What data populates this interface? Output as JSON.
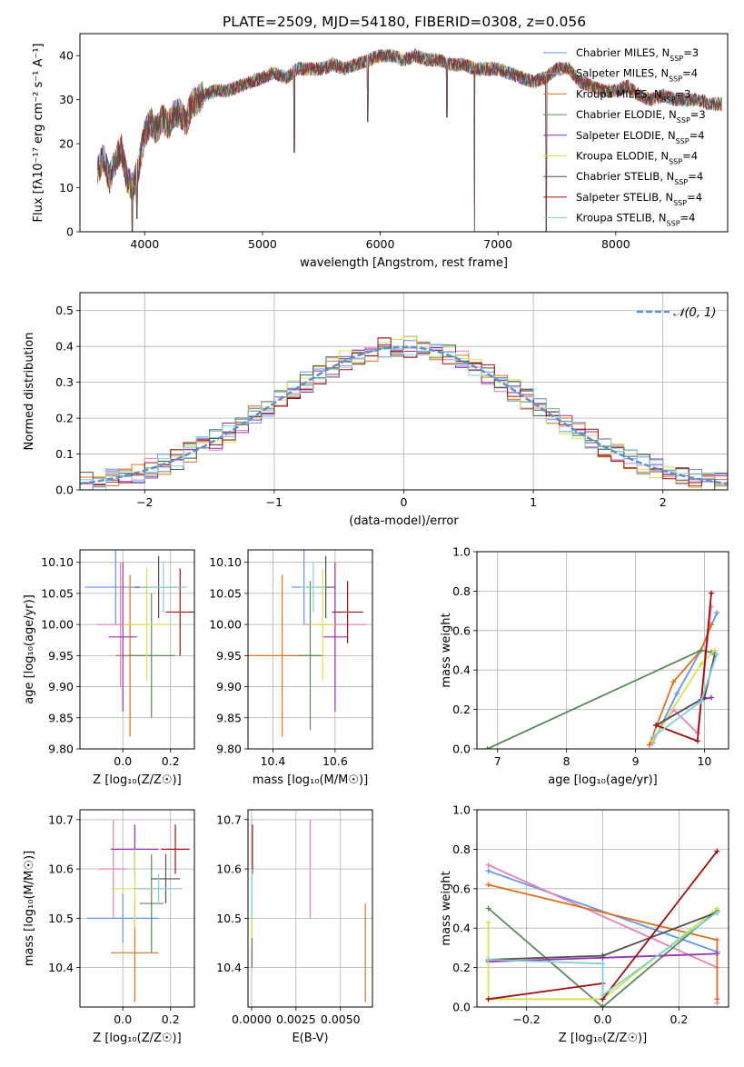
{
  "figure": {
    "title": "PLATE=2509, MJD=54180, FIBERID=0308, z=0.056"
  },
  "series": [
    {
      "name": "Chabrier MILES, N",
      "sub": "SSP",
      "eq": "=3",
      "color": "#6495ed"
    },
    {
      "name": "Salpeter MILES, N",
      "sub": "SSP",
      "eq": "=4",
      "color": "#e87fb8"
    },
    {
      "name": "Kroupa MILES, N",
      "sub": "SSP",
      "eq": "=3",
      "color": "#e07020"
    },
    {
      "name": "Chabrier ELODIE, N",
      "sub": "SSP",
      "eq": "=3",
      "color": "#5a8a5a"
    },
    {
      "name": "Salpeter ELODIE, N",
      "sub": "SSP",
      "eq": "=4",
      "color": "#9a30b0"
    },
    {
      "name": "Kroupa ELODIE, N",
      "sub": "SSP",
      "eq": "=4",
      "color": "#d8e050"
    },
    {
      "name": "Chabrier STELIB, N",
      "sub": "SSP",
      "eq": "=4",
      "color": "#505050"
    },
    {
      "name": "Salpeter STELIB, N",
      "sub": "SSP",
      "eq": "=4",
      "color": "#a01010"
    },
    {
      "name": "Kroupa STELIB, N",
      "sub": "SSP",
      "eq": "=4",
      "color": "#80d0d8"
    }
  ],
  "chart_data": [
    {
      "id": "spectrum",
      "type": "line",
      "xlabel": "wavelength [Angstrom, rest frame]",
      "ylabel": "Flux [fλ10⁻¹⁷ erg cm⁻² s⁻¹ A⁻¹]",
      "xlim": [
        3450,
        8950
      ],
      "ylim": [
        0,
        45
      ],
      "xticks": [
        "4000",
        "5000",
        "6000",
        "7000",
        "8000"
      ],
      "xtick_values": [
        4000,
        5000,
        6000,
        7000,
        8000
      ],
      "yticks": [
        "0",
        "10",
        "20",
        "30",
        "40"
      ],
      "ytick_values": [
        0,
        10,
        20,
        30,
        40
      ],
      "grid": false,
      "legend": "top-right",
      "x": [
        3600,
        3650,
        3700,
        3750,
        3800,
        3850,
        3900,
        3950,
        4000,
        4050,
        4100,
        4150,
        4200,
        4250,
        4300,
        4350,
        4400,
        4450,
        4500,
        4600,
        4700,
        4800,
        4900,
        5000,
        5100,
        5200,
        5300,
        5400,
        5500,
        5600,
        5700,
        5800,
        5900,
        6000,
        6100,
        6200,
        6300,
        6400,
        6500,
        6600,
        6700,
        6800,
        6900,
        7000,
        7100,
        7200,
        7300,
        7400,
        7500,
        7600,
        7700,
        7800,
        7900,
        8000,
        8100,
        8200,
        8300,
        8400,
        8500,
        8600,
        8700,
        8800,
        8900
      ],
      "values": [
        14,
        17,
        12,
        16,
        19,
        12,
        10,
        15,
        22,
        25,
        23,
        26,
        24,
        27,
        27,
        25,
        29,
        30,
        31,
        32,
        32,
        33,
        34,
        35,
        36,
        35,
        37,
        37,
        37,
        38,
        37,
        38,
        39,
        40,
        40,
        39,
        40,
        39,
        39,
        38,
        38,
        37,
        37,
        37,
        36,
        35,
        34,
        35,
        37,
        37,
        34,
        33,
        32,
        32,
        33,
        31,
        30,
        31,
        30,
        30,
        30,
        29,
        29
      ],
      "dips": [
        {
          "x": 3895,
          "y": 0
        },
        {
          "x": 3935,
          "y": 3
        },
        {
          "x": 5270,
          "y": 18
        },
        {
          "x": 5895,
          "y": 25
        },
        {
          "x": 6565,
          "y": 26
        },
        {
          "x": 6800,
          "y": 0
        },
        {
          "x": 7410,
          "y": 0
        }
      ]
    },
    {
      "id": "residuals",
      "type": "line",
      "xlabel": "(data-model)/error",
      "ylabel": "Normed distribution",
      "xlim": [
        -2.5,
        2.5
      ],
      "ylim": [
        0,
        0.55
      ],
      "xticks": [
        "−2",
        "−1",
        "0",
        "1",
        "2"
      ],
      "xtick_values": [
        -2,
        -1,
        0,
        1,
        2
      ],
      "yticks": [
        "0.0",
        "0.1",
        "0.2",
        "0.3",
        "0.4",
        "0.5"
      ],
      "ytick_values": [
        0,
        0.1,
        0.2,
        0.3,
        0.4,
        0.5
      ],
      "grid": true,
      "legend": "top-right",
      "reference": {
        "name": "𝒩(0, 1)",
        "mean": 0,
        "sigma": 1
      }
    },
    {
      "id": "age-vs-Z",
      "type": "scatter",
      "xlabel": "Z [log₁₀(Z/Z☉)]",
      "ylabel": "age  [log₁₀(age/yr)]",
      "xlim": [
        -0.18,
        0.3
      ],
      "ylim": [
        9.8,
        10.12
      ],
      "xticks": [
        "0.0",
        "0.2"
      ],
      "xtick_values": [
        0,
        0.2
      ],
      "yticks": [
        "9.80",
        "9.85",
        "9.90",
        "9.95",
        "10.00",
        "10.05",
        "10.10"
      ],
      "ytick_values": [
        9.8,
        9.85,
        9.9,
        9.95,
        10.0,
        10.05,
        10.1
      ],
      "grid": true,
      "points": [
        {
          "x": -0.03,
          "y": 10.06,
          "xerr": 0.13,
          "yerr": 0.06,
          "c": 0
        },
        {
          "x": -0.01,
          "y": 10.0,
          "xerr": 0.1,
          "yerr": 0.1,
          "c": 1
        },
        {
          "x": 0.03,
          "y": 9.95,
          "xerr": 0.06,
          "yerr": 0.13,
          "c": 2
        },
        {
          "x": 0.12,
          "y": 9.95,
          "xerr": 0.1,
          "yerr": 0.1,
          "c": 3
        },
        {
          "x": 0.0,
          "y": 9.98,
          "xerr": 0.06,
          "yerr": 0.12,
          "c": 4
        },
        {
          "x": 0.1,
          "y": 10.0,
          "xerr": 0.1,
          "yerr": 0.09,
          "c": 5
        },
        {
          "x": 0.15,
          "y": 10.06,
          "xerr": 0.1,
          "yerr": 0.05,
          "c": 6
        },
        {
          "x": 0.24,
          "y": 10.02,
          "xerr": 0.06,
          "yerr": 0.07,
          "c": 7
        },
        {
          "x": 0.17,
          "y": 10.06,
          "xerr": 0.1,
          "yerr": 0.04,
          "c": 8
        }
      ]
    },
    {
      "id": "age-vs-mass",
      "type": "scatter",
      "xlabel": "mass [log₁₀(M/M☉)]",
      "ylabel": "",
      "xlim": [
        10.32,
        10.72
      ],
      "ylim": [
        9.8,
        10.12
      ],
      "xticks": [
        "10.4",
        "10.6"
      ],
      "xtick_values": [
        10.4,
        10.6
      ],
      "yticks": [
        "9.80",
        "9.85",
        "9.90",
        "9.95",
        "10.00",
        "10.05",
        "10.10"
      ],
      "ytick_values": [
        9.8,
        9.85,
        9.9,
        9.95,
        10.0,
        10.05,
        10.1
      ],
      "grid": true,
      "points": [
        {
          "x": 10.5,
          "y": 10.06,
          "xerr": 0.04,
          "yerr": 0.06,
          "c": 0
        },
        {
          "x": 10.6,
          "y": 10.0,
          "xerr": 0.1,
          "yerr": 0.1,
          "c": 1
        },
        {
          "x": 10.43,
          "y": 9.95,
          "xerr": 0.12,
          "yerr": 0.13,
          "c": 2
        },
        {
          "x": 10.52,
          "y": 9.95,
          "xerr": 0.04,
          "yerr": 0.12,
          "c": 3
        },
        {
          "x": 10.6,
          "y": 9.98,
          "xerr": 0.04,
          "yerr": 0.12,
          "c": 4
        },
        {
          "x": 10.56,
          "y": 10.0,
          "xerr": 0.04,
          "yerr": 0.09,
          "c": 5
        },
        {
          "x": 10.57,
          "y": 10.06,
          "xerr": 0.03,
          "yerr": 0.05,
          "c": 6
        },
        {
          "x": 10.64,
          "y": 10.02,
          "xerr": 0.05,
          "yerr": 0.05,
          "c": 7
        },
        {
          "x": 10.53,
          "y": 10.06,
          "xerr": 0.04,
          "yerr": 0.04,
          "c": 8
        }
      ]
    },
    {
      "id": "mass-weight-vs-age",
      "type": "line",
      "xlabel": "age  [log₁₀(age/yr)]",
      "ylabel": "mass weight",
      "xlim": [
        6.7,
        10.35
      ],
      "ylim": [
        0,
        1
      ],
      "xticks": [
        "7",
        "8",
        "9",
        "10"
      ],
      "xtick_values": [
        7,
        8,
        9,
        10
      ],
      "yticks": [
        "0.0",
        "0.2",
        "0.4",
        "0.6",
        "0.8",
        "1.0"
      ],
      "ytick_values": [
        0,
        0.2,
        0.4,
        0.6,
        0.8,
        1.0
      ],
      "grid": true,
      "lines": [
        {
          "c": 0,
          "x": [
            9.25,
            9.6,
            9.95,
            10.18
          ],
          "y": [
            0.03,
            0.28,
            0.5,
            0.69
          ]
        },
        {
          "c": 1,
          "x": [
            9.2,
            9.55,
            9.9,
            10.1
          ],
          "y": [
            0.02,
            0.2,
            0.08,
            0.72
          ]
        },
        {
          "c": 2,
          "x": [
            9.2,
            9.55,
            9.95,
            10.1
          ],
          "y": [
            0.02,
            0.34,
            0.5,
            0.63
          ]
        },
        {
          "c": 3,
          "x": [
            6.85,
            9.95,
            10.1
          ],
          "y": [
            0.0,
            0.5,
            0.49
          ]
        },
        {
          "c": 4,
          "x": [
            9.3,
            9.95,
            10.1
          ],
          "y": [
            0.12,
            0.25,
            0.26
          ]
        },
        {
          "c": 5,
          "x": [
            9.25,
            9.95,
            10.15
          ],
          "y": [
            0.04,
            0.43,
            0.5
          ]
        },
        {
          "c": 6,
          "x": [
            9.3,
            10.0,
            10.15
          ],
          "y": [
            0.12,
            0.26,
            0.48
          ]
        },
        {
          "c": 7,
          "x": [
            9.3,
            9.9,
            10.1
          ],
          "y": [
            0.12,
            0.04,
            0.79
          ]
        },
        {
          "c": 8,
          "x": [
            9.25,
            9.95,
            10.18
          ],
          "y": [
            0.06,
            0.24,
            0.48
          ]
        }
      ]
    },
    {
      "id": "mass-vs-Z",
      "type": "scatter",
      "xlabel": "Z [log₁₀(Z/Z☉)]",
      "ylabel": "mass [log₁₀(M/M☉)]",
      "xlim": [
        -0.18,
        0.3
      ],
      "ylim": [
        10.32,
        10.72
      ],
      "xticks": [
        "0.0",
        "0.2"
      ],
      "xtick_values": [
        0,
        0.2
      ],
      "yticks": [
        "10.4",
        "10.5",
        "10.6",
        "10.7"
      ],
      "ytick_values": [
        10.4,
        10.5,
        10.6,
        10.7
      ],
      "grid": true,
      "points": [
        {
          "x": 0.0,
          "y": 10.5,
          "xerr": 0.15,
          "yerr": 0.05,
          "c": 0
        },
        {
          "x": -0.04,
          "y": 10.6,
          "xerr": 0.06,
          "yerr": 0.1,
          "c": 1
        },
        {
          "x": 0.05,
          "y": 10.43,
          "xerr": 0.1,
          "yerr": 0.1,
          "c": 2
        },
        {
          "x": 0.12,
          "y": 10.53,
          "xerr": 0.05,
          "yerr": 0.1,
          "c": 3
        },
        {
          "x": 0.05,
          "y": 10.64,
          "xerr": 0.1,
          "yerr": 0.05,
          "c": 4
        },
        {
          "x": 0.05,
          "y": 10.56,
          "xerr": 0.1,
          "yerr": 0.08,
          "c": 5
        },
        {
          "x": 0.18,
          "y": 10.58,
          "xerr": 0.06,
          "yerr": 0.05,
          "c": 6
        },
        {
          "x": 0.22,
          "y": 10.64,
          "xerr": 0.06,
          "yerr": 0.05,
          "c": 7
        },
        {
          "x": 0.15,
          "y": 10.56,
          "xerr": 0.1,
          "yerr": 0.03,
          "c": 8
        }
      ]
    },
    {
      "id": "mass-vs-ebv",
      "type": "scatter",
      "xlabel": "E(B-V)",
      "ylabel": "",
      "xlim": [
        -0.0002,
        0.0068
      ],
      "ylim": [
        10.32,
        10.72
      ],
      "xticks": [
        "0.0000",
        "0.0025",
        "0.0050"
      ],
      "xtick_values": [
        0,
        0.0025,
        0.005
      ],
      "yticks": [
        "10.4",
        "10.5",
        "10.6",
        "10.7"
      ],
      "ytick_values": [
        10.4,
        10.5,
        10.6,
        10.7
      ],
      "grid": true,
      "points": [
        {
          "x": 5e-05,
          "y": 10.64,
          "xerr": 0,
          "yerr": 0.05,
          "c": 7
        },
        {
          "x": 2e-05,
          "y": 10.5,
          "xerr": 0,
          "yerr": 0.05,
          "c": 5
        },
        {
          "x": 2e-05,
          "y": 10.55,
          "xerr": 0,
          "yerr": 0.05,
          "c": 8
        },
        {
          "x": 3e-05,
          "y": 10.43,
          "xerr": 0,
          "yerr": 0.03,
          "c": 3
        },
        {
          "x": 0.0033,
          "y": 10.6,
          "xerr": 0,
          "yerr": 0.1,
          "c": 1
        },
        {
          "x": 0.0064,
          "y": 10.43,
          "xerr": 0,
          "yerr": 0.1,
          "c": 2
        }
      ]
    },
    {
      "id": "mass-weight-vs-Z",
      "type": "line",
      "xlabel": "Z [log₁₀(Z/Z☉)]",
      "ylabel": "mass weight",
      "xlim": [
        -0.33,
        0.33
      ],
      "ylim": [
        0,
        1
      ],
      "xticks": [
        "−0.2",
        "0.0",
        "0.2"
      ],
      "xtick_values": [
        -0.2,
        0,
        0.2
      ],
      "yticks": [
        "0.0",
        "0.2",
        "0.4",
        "0.6",
        "0.8",
        "1.0"
      ],
      "ytick_values": [
        0,
        0.2,
        0.4,
        0.6,
        0.8,
        1.0
      ],
      "grid": true,
      "lines": [
        {
          "c": 0,
          "x": [
            -0.3,
            0.3
          ],
          "y": [
            0.69,
            0.28
          ]
        },
        {
          "c": 1,
          "x": [
            -0.3,
            0.3,
            0.3
          ],
          "y": [
            0.72,
            0.2,
            0.02
          ]
        },
        {
          "c": 2,
          "x": [
            -0.3,
            0.3,
            0.3
          ],
          "y": [
            0.62,
            0.34,
            0.04
          ]
        },
        {
          "c": 3,
          "x": [
            -0.3,
            0.0,
            0.3
          ],
          "y": [
            0.5,
            0.0,
            0.49
          ]
        },
        {
          "c": 4,
          "x": [
            -0.3,
            0.0,
            0.3
          ],
          "y": [
            0.23,
            0.25,
            0.27
          ]
        },
        {
          "c": 5,
          "x": [
            -0.3,
            -0.3,
            0.0,
            0.3
          ],
          "y": [
            0.43,
            0.04,
            0.04,
            0.5
          ]
        },
        {
          "c": 6,
          "x": [
            -0.3,
            0.0,
            0.0,
            0.3
          ],
          "y": [
            0.24,
            0.26,
            0.26,
            0.48
          ]
        },
        {
          "c": 7,
          "x": [
            -0.3,
            0.0,
            0.0,
            0.3
          ],
          "y": [
            0.04,
            0.12,
            0.04,
            0.79
          ]
        },
        {
          "c": 8,
          "x": [
            -0.3,
            0.0,
            0.0,
            0.3
          ],
          "y": [
            0.24,
            0.22,
            0.06,
            0.48
          ]
        }
      ]
    }
  ]
}
